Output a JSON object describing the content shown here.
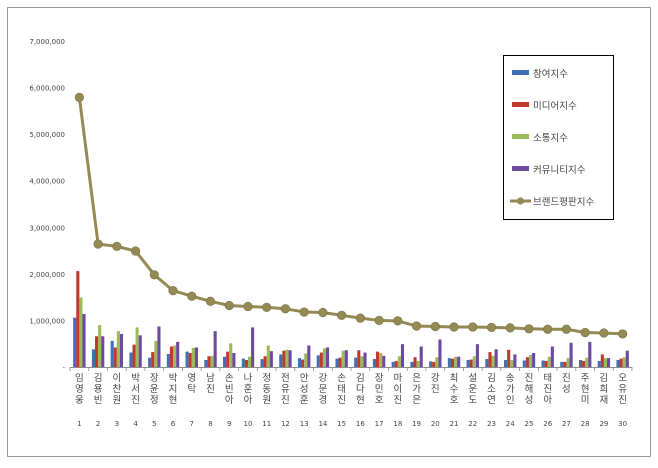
{
  "chart_data": {
    "type": "bar",
    "title": "",
    "xlabel": "",
    "ylabel": "",
    "ylim": [
      0,
      7000000
    ],
    "yticks": [
      "-",
      "1,000,000",
      "2,000,000",
      "3,000,000",
      "4,000,000",
      "5,000,000",
      "6,000,000",
      "7,000,000"
    ],
    "grid": false,
    "legend_position": "top-right",
    "ranks": [
      "1",
      "2",
      "3",
      "4",
      "5",
      "6",
      "7",
      "8",
      "9",
      "10",
      "11",
      "12",
      "13",
      "14",
      "15",
      "16",
      "17",
      "18",
      "19",
      "20",
      "21",
      "22",
      "23",
      "24",
      "25",
      "26",
      "27",
      "28",
      "29",
      "30"
    ],
    "categories": [
      "임영웅",
      "김용빈",
      "이찬원",
      "박서진",
      "장윤정",
      "박지현",
      "영탁",
      "남진",
      "손빈아",
      "나훈아",
      "정동원",
      "전유진",
      "안성훈",
      "강문경",
      "손태진",
      "김다현",
      "장민호",
      "마이진",
      "은가은",
      "강진",
      "최수호",
      "설운도",
      "김소연",
      "송가인",
      "진해성",
      "태진아",
      "진성",
      "주현미",
      "김희재",
      "오유진"
    ],
    "series": [
      {
        "name": "참여지수",
        "kind": "bar",
        "color": "#3f6fb4",
        "values": [
          1060000,
          380000,
          560000,
          310000,
          200000,
          280000,
          330000,
          150000,
          220000,
          180000,
          170000,
          270000,
          190000,
          250000,
          180000,
          200000,
          170000,
          110000,
          110000,
          120000,
          190000,
          150000,
          170000,
          150000,
          140000,
          140000,
          110000,
          150000,
          130000,
          150000
        ]
      },
      {
        "name": "미디어지수",
        "kind": "bar",
        "color": "#c0392f",
        "values": [
          2060000,
          660000,
          420000,
          480000,
          320000,
          440000,
          300000,
          230000,
          330000,
          150000,
          230000,
          350000,
          160000,
          310000,
          200000,
          360000,
          330000,
          130000,
          210000,
          110000,
          180000,
          160000,
          320000,
          370000,
          210000,
          130000,
          110000,
          130000,
          270000,
          180000
        ]
      },
      {
        "name": "소통지수",
        "kind": "bar",
        "color": "#9bbb59",
        "values": [
          1490000,
          900000,
          770000,
          850000,
          560000,
          460000,
          410000,
          240000,
          510000,
          220000,
          460000,
          370000,
          290000,
          400000,
          350000,
          230000,
          300000,
          230000,
          130000,
          210000,
          220000,
          230000,
          240000,
          150000,
          260000,
          220000,
          190000,
          200000,
          190000,
          210000
        ]
      },
      {
        "name": "커뮤니티지수",
        "kind": "bar",
        "color": "#6b4a9f",
        "values": [
          1140000,
          660000,
          710000,
          680000,
          870000,
          540000,
          420000,
          770000,
          300000,
          850000,
          340000,
          360000,
          460000,
          420000,
          360000,
          310000,
          240000,
          490000,
          440000,
          590000,
          220000,
          490000,
          380000,
          270000,
          300000,
          440000,
          520000,
          540000,
          190000,
          350000
        ]
      },
      {
        "name": "브랜드평판지수",
        "kind": "line",
        "color": "#948a54",
        "values": [
          5790000,
          2640000,
          2590000,
          2490000,
          1980000,
          1640000,
          1520000,
          1410000,
          1320000,
          1300000,
          1280000,
          1250000,
          1180000,
          1170000,
          1110000,
          1050000,
          1000000,
          990000,
          880000,
          870000,
          860000,
          860000,
          850000,
          840000,
          820000,
          810000,
          810000,
          740000,
          730000,
          710000
        ]
      }
    ]
  }
}
